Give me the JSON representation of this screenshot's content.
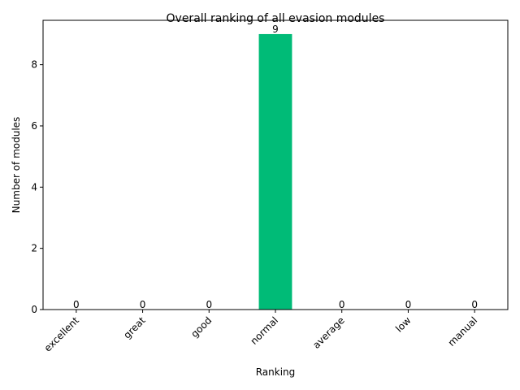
{
  "chart_data": {
    "type": "bar",
    "title": "Overall ranking of all evasion modules",
    "xlabel": "Ranking",
    "ylabel": "Number of modules",
    "categories": [
      "excellent",
      "great",
      "good",
      "normal",
      "average",
      "low",
      "manual"
    ],
    "values": [
      0,
      0,
      0,
      9,
      0,
      0,
      0
    ],
    "ylim": [
      0,
      9.45
    ],
    "yticks": [
      0,
      2,
      4,
      6,
      8
    ],
    "bar_color": "#00bb77",
    "grid": false,
    "legend": "none"
  }
}
